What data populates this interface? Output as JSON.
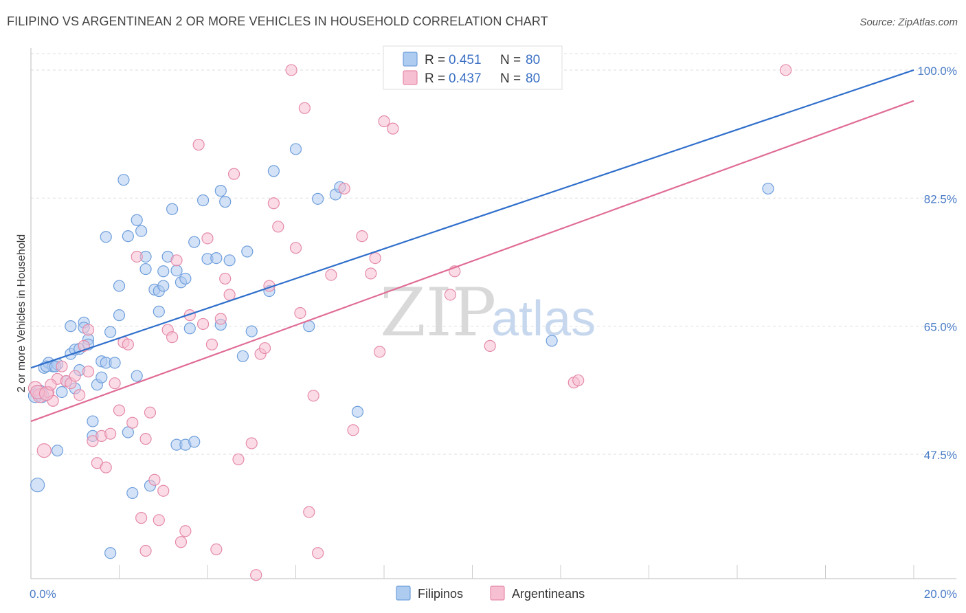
{
  "title": "FILIPINO VS ARGENTINEAN 2 OR MORE VEHICLES IN HOUSEHOLD CORRELATION CHART",
  "source": "Source: ZipAtlas.com",
  "watermark": {
    "zip": "ZIP",
    "atlas": "atlas"
  },
  "colors": {
    "blue_fill": "#aecbf0",
    "blue_stroke": "#6f9fdc",
    "blue_line": "#2f6fcb",
    "pink_fill": "#f7bfd2",
    "pink_stroke": "#e58aa9",
    "pink_line": "#e06c96",
    "grid": "#dddddd",
    "tick_text": "#4a7cc7"
  },
  "legend": {
    "rows": [
      {
        "r_label": "R =",
        "r_value": "0.451",
        "n_label": "N =",
        "n_value": "80"
      },
      {
        "r_label": "R =",
        "r_value": "0.437",
        "n_label": "N =",
        "n_value": "80"
      }
    ]
  },
  "bottom_legend": [
    "Filipinos",
    "Argentineans"
  ],
  "chart_data": {
    "type": "scatter",
    "title": "FILIPINO VS ARGENTINEAN 2 OR MORE VEHICLES IN HOUSEHOLD CORRELATION CHART",
    "xlabel": "",
    "ylabel": "2 or more Vehicles in Household",
    "xlim": [
      0,
      20
    ],
    "ylim": [
      30.5,
      103
    ],
    "x_tick_labels": [
      "0.0%",
      "20.0%"
    ],
    "y_ticks": [
      100,
      82.5,
      65,
      47.5
    ],
    "y_tick_labels": [
      "100.0%",
      "82.5%",
      "65.0%",
      "47.5%"
    ],
    "grid": true,
    "legend_position": "top-center",
    "series": [
      {
        "name": "Filipinos",
        "color": "#6f9fdc",
        "r": 0.451,
        "n": 80,
        "trend": {
          "x": [
            0,
            20
          ],
          "y": [
            59.3,
            100
          ]
        },
        "points": [
          [
            0.1,
            55.5
          ],
          [
            0.2,
            56.0
          ],
          [
            0.3,
            59.3
          ],
          [
            0.4,
            60.0
          ],
          [
            0.5,
            59.5
          ],
          [
            0.6,
            48.0
          ],
          [
            0.6,
            59.8
          ],
          [
            0.7,
            56.0
          ],
          [
            0.8,
            57.5
          ],
          [
            0.9,
            61.2
          ],
          [
            0.9,
            65.0
          ],
          [
            1.0,
            61.8
          ],
          [
            1.0,
            56.5
          ],
          [
            1.1,
            61.9
          ],
          [
            1.1,
            59.0
          ],
          [
            1.2,
            65.5
          ],
          [
            1.2,
            64.8
          ],
          [
            1.3,
            63.2
          ],
          [
            1.3,
            62.5
          ],
          [
            1.4,
            52.0
          ],
          [
            1.4,
            50.0
          ],
          [
            1.5,
            57.0
          ],
          [
            1.6,
            60.2
          ],
          [
            1.6,
            58.0
          ],
          [
            1.7,
            77.2
          ],
          [
            1.7,
            60.0
          ],
          [
            1.8,
            64.2
          ],
          [
            1.8,
            34.0
          ],
          [
            1.9,
            60.0
          ],
          [
            2.0,
            66.5
          ],
          [
            2.0,
            70.5
          ],
          [
            2.1,
            85.0
          ],
          [
            2.2,
            50.5
          ],
          [
            2.2,
            77.3
          ],
          [
            2.3,
            42.2
          ],
          [
            2.4,
            58.2
          ],
          [
            2.4,
            79.5
          ],
          [
            2.5,
            78.0
          ],
          [
            2.6,
            72.8
          ],
          [
            2.6,
            74.5
          ],
          [
            2.7,
            43.2
          ],
          [
            2.8,
            70.0
          ],
          [
            2.9,
            69.8
          ],
          [
            2.9,
            67.0
          ],
          [
            3.0,
            70.5
          ],
          [
            3.0,
            72.5
          ],
          [
            3.1,
            74.5
          ],
          [
            3.2,
            81.0
          ],
          [
            3.3,
            72.6
          ],
          [
            3.3,
            48.8
          ],
          [
            3.4,
            71.0
          ],
          [
            3.5,
            71.5
          ],
          [
            3.5,
            48.8
          ],
          [
            3.6,
            64.7
          ],
          [
            3.7,
            76.5
          ],
          [
            3.7,
            49.2
          ],
          [
            3.9,
            82.2
          ],
          [
            4.0,
            74.2
          ],
          [
            4.2,
            74.3
          ],
          [
            4.3,
            65.2
          ],
          [
            4.3,
            83.5
          ],
          [
            4.4,
            82.0
          ],
          [
            4.5,
            74.0
          ],
          [
            4.8,
            60.9
          ],
          [
            4.9,
            75.2
          ],
          [
            5.0,
            64.3
          ],
          [
            5.4,
            69.8
          ],
          [
            5.5,
            86.2
          ],
          [
            6.0,
            89.2
          ],
          [
            6.3,
            65.0
          ],
          [
            6.5,
            82.4
          ],
          [
            6.9,
            83.0
          ],
          [
            7.0,
            84.0
          ],
          [
            7.4,
            53.3
          ],
          [
            11.8,
            63.0
          ],
          [
            16.7,
            83.8
          ],
          [
            0.15,
            43.3
          ],
          [
            0.25,
            55.5
          ],
          [
            0.35,
            59.5
          ],
          [
            0.55,
            59.5
          ]
        ]
      },
      {
        "name": "Argentineans",
        "color": "#e58aa9",
        "r": 0.437,
        "n": 80,
        "trend": {
          "x": [
            0,
            20
          ],
          "y": [
            52.0,
            95.8
          ]
        },
        "points": [
          [
            0.1,
            56.5
          ],
          [
            0.2,
            55.5
          ],
          [
            0.3,
            48.0
          ],
          [
            0.4,
            56.0
          ],
          [
            0.5,
            54.8
          ],
          [
            0.6,
            57.8
          ],
          [
            0.7,
            59.5
          ],
          [
            0.8,
            57.5
          ],
          [
            0.9,
            57.2
          ],
          [
            1.0,
            58.2
          ],
          [
            1.1,
            55.6
          ],
          [
            1.2,
            62.3
          ],
          [
            1.3,
            58.8
          ],
          [
            1.3,
            64.5
          ],
          [
            1.4,
            49.3
          ],
          [
            1.5,
            46.3
          ],
          [
            1.6,
            50.0
          ],
          [
            1.7,
            45.7
          ],
          [
            1.8,
            50.3
          ],
          [
            1.9,
            57.2
          ],
          [
            2.0,
            53.5
          ],
          [
            2.1,
            62.8
          ],
          [
            2.2,
            62.5
          ],
          [
            2.3,
            51.8
          ],
          [
            2.4,
            74.5
          ],
          [
            2.5,
            38.8
          ],
          [
            2.6,
            34.3
          ],
          [
            2.6,
            49.6
          ],
          [
            2.7,
            53.2
          ],
          [
            2.8,
            44.0
          ],
          [
            2.9,
            38.5
          ],
          [
            3.0,
            42.5
          ],
          [
            3.1,
            64.5
          ],
          [
            3.2,
            63.5
          ],
          [
            3.3,
            74.0
          ],
          [
            3.4,
            35.5
          ],
          [
            3.5,
            37.0
          ],
          [
            3.6,
            66.5
          ],
          [
            3.8,
            89.8
          ],
          [
            3.9,
            65.3
          ],
          [
            4.0,
            77.0
          ],
          [
            4.1,
            62.5
          ],
          [
            4.2,
            34.5
          ],
          [
            4.3,
            66.0
          ],
          [
            4.4,
            71.5
          ],
          [
            4.5,
            69.3
          ],
          [
            4.6,
            85.8
          ],
          [
            4.7,
            46.8
          ],
          [
            5.0,
            49.0
          ],
          [
            5.1,
            31.0
          ],
          [
            5.2,
            61.2
          ],
          [
            5.3,
            62.0
          ],
          [
            5.4,
            70.5
          ],
          [
            5.5,
            81.8
          ],
          [
            5.6,
            78.6
          ],
          [
            5.9,
            100.0
          ],
          [
            6.0,
            75.7
          ],
          [
            6.1,
            66.8
          ],
          [
            6.2,
            94.8
          ],
          [
            6.3,
            39.6
          ],
          [
            6.4,
            55.5
          ],
          [
            6.5,
            34.0
          ],
          [
            6.8,
            72.0
          ],
          [
            7.1,
            83.8
          ],
          [
            7.3,
            50.8
          ],
          [
            7.5,
            77.3
          ],
          [
            7.7,
            72.2
          ],
          [
            7.8,
            74.3
          ],
          [
            7.9,
            61.5
          ],
          [
            8.0,
            93.0
          ],
          [
            8.2,
            92.0
          ],
          [
            9.5,
            69.3
          ],
          [
            9.6,
            72.5
          ],
          [
            10.4,
            62.3
          ],
          [
            12.3,
            57.3
          ],
          [
            12.4,
            57.6
          ],
          [
            17.1,
            100.0
          ],
          [
            0.15,
            56.0
          ],
          [
            0.35,
            55.8
          ],
          [
            0.45,
            57.0
          ]
        ]
      }
    ]
  }
}
